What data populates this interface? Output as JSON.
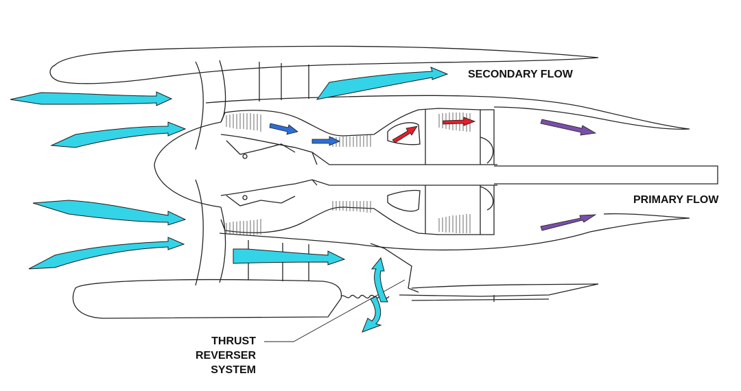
{
  "labels": {
    "secondary_flow": "SECONDARY FLOW",
    "primary_flow": "PRIMARY FLOW",
    "thrust_reverser_line1": "THRUST",
    "thrust_reverser_line2": "REVERSER",
    "thrust_reverser_line3": "SYSTEM"
  },
  "colors": {
    "air_flow": "#33d4e8",
    "cold_flow_arrow": "#2d6fd6",
    "hot_flow_arrow": "#e0202a",
    "exhaust_arrow": "#7a4fa8",
    "outline": "#222222"
  }
}
